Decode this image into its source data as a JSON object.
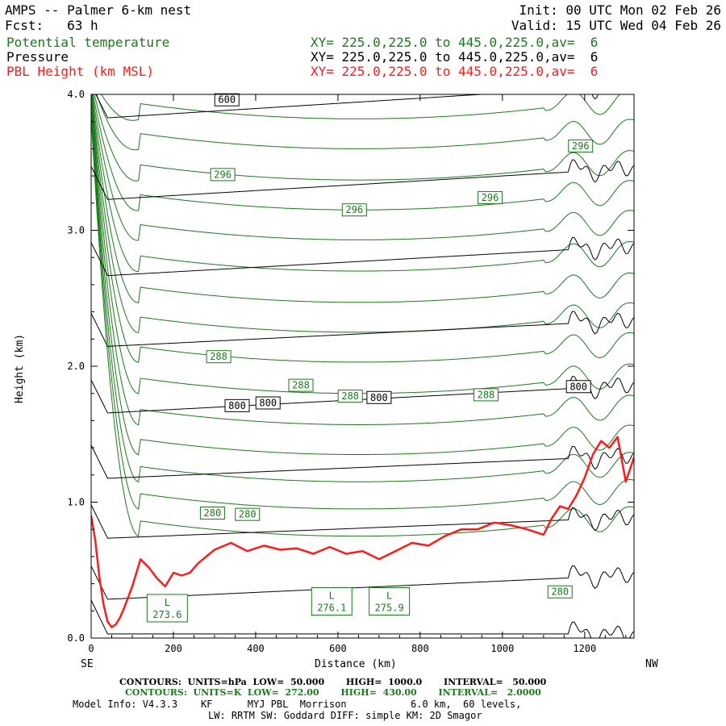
{
  "header": {
    "title": "AMPS -- Palmer 6-km nest",
    "forecast": "Fcst:   63 h",
    "init": "Init: 00 UTC Mon 02 Feb 26",
    "valid": "Valid: 15 UTC Wed 04 Feb 26",
    "fields": [
      {
        "label": "Potential temperature",
        "xy": "XY= 225.0,225.0 to 445.0,225.0,av=  6",
        "color": "#1a7a1a"
      },
      {
        "label": "Pressure",
        "xy": "XY= 225.0,225.0 to 445.0,225.0,av=  6",
        "color": "#000000"
      },
      {
        "label": "PBL Height (km MSL)",
        "xy": "XY= 225.0,225.0 to 445.0,225.0,av=  6",
        "color": "#ff1a1a"
      }
    ]
  },
  "chart_data": {
    "type": "line",
    "xlabel": "Distance (km)",
    "ylabel": "Height (km)",
    "xlim": [
      0,
      1320
    ],
    "ylim": [
      0,
      4.0
    ],
    "x_ticks": [
      0,
      200,
      400,
      600,
      800,
      1000,
      1200
    ],
    "x_tick_labels": [
      "0",
      "200",
      "400",
      "600",
      "800",
      "1000",
      "1200"
    ],
    "y_ticks": [
      0,
      1,
      2,
      3,
      4
    ],
    "y_tick_labels": [
      "0.0",
      "1.0",
      "2.0",
      "3.0",
      "4.0"
    ],
    "left_end_label": "SE",
    "right_end_label": "NW",
    "colors": {
      "theta": "#1a7a1a",
      "pressure": "#000000",
      "pbl": "#ff1a1a"
    },
    "pressure_lines": [
      {
        "y0": 0.03,
        "slope": 0.0,
        "y_end": 0.03
      },
      {
        "y0": 0.28,
        "slope": 0.00014,
        "y_end": 0.46
      },
      {
        "y0": 0.73,
        "slope": 0.00012,
        "y_end": 0.9
      },
      {
        "y0": 1.17,
        "slope": 0.00013,
        "y_end": 1.33
      },
      {
        "y0": 1.65,
        "slope": 0.00016,
        "y_end": 1.85
      },
      {
        "y0": 2.14,
        "slope": 0.00015,
        "y_end": 2.33
      },
      {
        "y0": 2.66,
        "slope": 0.00017,
        "y_end": 2.88
      },
      {
        "y0": 3.22,
        "slope": 0.00018,
        "y_end": 3.45
      },
      {
        "y0": 3.82,
        "slope": 0.00019,
        "y_end": 4.0
      }
    ],
    "theta_lines": [
      {
        "y_min": 0.6,
        "x_min": 650
      },
      {
        "y_min": 0.8,
        "x_min": 650
      },
      {
        "y_min": 1.0,
        "x_min": 650
      },
      {
        "y_min": 1.2,
        "x_min": 650
      },
      {
        "y_min": 1.42,
        "x_min": 650
      },
      {
        "y_min": 1.65,
        "x_min": 650
      },
      {
        "y_min": 1.88,
        "x_min": 650
      },
      {
        "y_min": 2.1,
        "x_min": 650
      },
      {
        "y_min": 2.32,
        "x_min": 650
      },
      {
        "y_min": 2.55,
        "x_min": 650
      },
      {
        "y_min": 2.78,
        "x_min": 650
      },
      {
        "y_min": 3.0,
        "x_min": 650
      },
      {
        "y_min": 3.22,
        "x_min": 650
      },
      {
        "y_min": 3.45,
        "x_min": 650
      },
      {
        "y_min": 3.67,
        "x_min": 650
      },
      {
        "y_min": 3.9,
        "x_min": 650
      }
    ],
    "pbl_height": {
      "x": [
        0,
        10,
        20,
        30,
        40,
        50,
        60,
        70,
        80,
        100,
        120,
        140,
        160,
        180,
        200,
        220,
        240,
        260,
        280,
        300,
        340,
        380,
        420,
        460,
        500,
        540,
        580,
        620,
        660,
        700,
        740,
        780,
        820,
        860,
        900,
        940,
        980,
        1020,
        1060,
        1100,
        1120,
        1140,
        1160,
        1180,
        1200,
        1220,
        1240,
        1260,
        1280,
        1300,
        1320
      ],
      "y": [
        0.9,
        0.72,
        0.45,
        0.25,
        0.12,
        0.08,
        0.1,
        0.15,
        0.22,
        0.38,
        0.58,
        0.52,
        0.44,
        0.38,
        0.48,
        0.46,
        0.48,
        0.55,
        0.6,
        0.65,
        0.7,
        0.64,
        0.68,
        0.65,
        0.66,
        0.62,
        0.67,
        0.62,
        0.64,
        0.58,
        0.64,
        0.7,
        0.68,
        0.75,
        0.8,
        0.8,
        0.85,
        0.83,
        0.8,
        0.76,
        0.88,
        0.97,
        0.95,
        1.05,
        1.18,
        1.35,
        1.45,
        1.4,
        1.48,
        1.15,
        1.33
      ]
    },
    "theta_labels": [
      {
        "text": "296",
        "x": 320,
        "y": 3.41
      },
      {
        "text": "296",
        "x": 640,
        "y": 3.15
      },
      {
        "text": "296",
        "x": 970,
        "y": 3.24
      },
      {
        "text": "296",
        "x": 1190,
        "y": 3.62
      },
      {
        "text": "288",
        "x": 310,
        "y": 2.07
      },
      {
        "text": "288",
        "x": 510,
        "y": 1.86
      },
      {
        "text": "288",
        "x": 630,
        "y": 1.78
      },
      {
        "text": "288",
        "x": 960,
        "y": 1.79
      },
      {
        "text": "280",
        "x": 295,
        "y": 0.92
      },
      {
        "text": "280",
        "x": 380,
        "y": 0.91
      },
      {
        "text": "280",
        "x": 1140,
        "y": 0.34
      }
    ],
    "pressure_labels": [
      {
        "text": "600",
        "x": 330,
        "y": 3.96
      },
      {
        "text": "800",
        "x": 355,
        "y": 1.71
      },
      {
        "text": "800",
        "x": 430,
        "y": 1.73
      },
      {
        "text": "800",
        "x": 700,
        "y": 1.77
      },
      {
        "text": "800",
        "x": 1185,
        "y": 1.85
      }
    ],
    "lows": [
      {
        "letter": "L",
        "value": "273.6",
        "x": 185,
        "y": 0.22
      },
      {
        "letter": "L",
        "value": "276.1",
        "x": 585,
        "y": 0.27
      },
      {
        "letter": "L",
        "value": "275.9",
        "x": 725,
        "y": 0.27
      }
    ]
  },
  "footer": {
    "pressure_contours": "CONTOURS:  UNITS=hPa  LOW=  50.000       HIGH=  1000.0       INTERVAL=   50.000",
    "theta_contours": "CONTOURS:  UNITS=K  LOW=  272.00       HIGH=  430.00       INTERVAL=   2.0000",
    "model_info": "Model Info: V4.3.3    KF      MYJ PBL  Morrison           6.0 km,  60 levels,",
    "physics": "LW: RRTM SW: Goddard DIFF: simple KM: 2D Smagor"
  }
}
